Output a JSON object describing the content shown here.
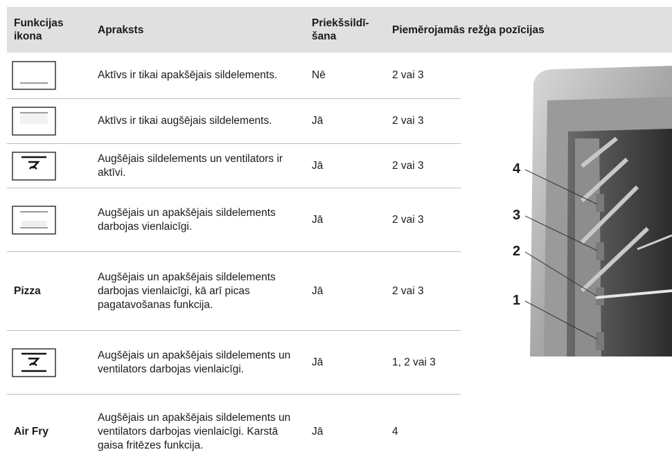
{
  "table": {
    "header": [
      "Funkcijas ikona",
      "Apraksts",
      "Priekšsildī-šana",
      "Piemērojamās režģa pozīcijas"
    ],
    "rows": [
      {
        "description": "Aktīvs ir tikai apakšējais sildelements.",
        "preheat": "Nē",
        "positions": "2 vai 3"
      },
      {
        "description": "Aktīvs ir tikai augšējais sildelements.",
        "preheat": "Jā",
        "positions": "2 vai 3"
      },
      {
        "description": "Augšējais sildelements un ventilators ir aktīvi.",
        "preheat": "Jā",
        "positions": "2 vai 3"
      },
      {
        "description": "Augšējais un apakšējais sildelements darbojas vienlaicīgi.",
        "preheat": "Jā",
        "positions": "2 vai 3"
      },
      {
        "icon_label": "Pizza",
        "description": "Augšējais un apakšējais sildelements darbojas vienlaicīgi, kā arī picas pagatavošanas funkcija.",
        "preheat": "Jā",
        "positions": "2 vai 3"
      },
      {
        "description": "Augšējais un apakšējais sildelements un ventilators darbojas vienlaicīgi.",
        "preheat": "Jā",
        "positions": "1, 2 vai 3"
      },
      {
        "icon_label": "Air Fry",
        "description": "Augšējais un apakšējais sildelements un ventilators darbojas vienlaicīgi. Karstā gaisa fritēzes funkcija.",
        "preheat": "Jā",
        "positions": "4"
      }
    ]
  },
  "figure": {
    "labels": [
      "4",
      "3",
      "2",
      "1"
    ]
  }
}
